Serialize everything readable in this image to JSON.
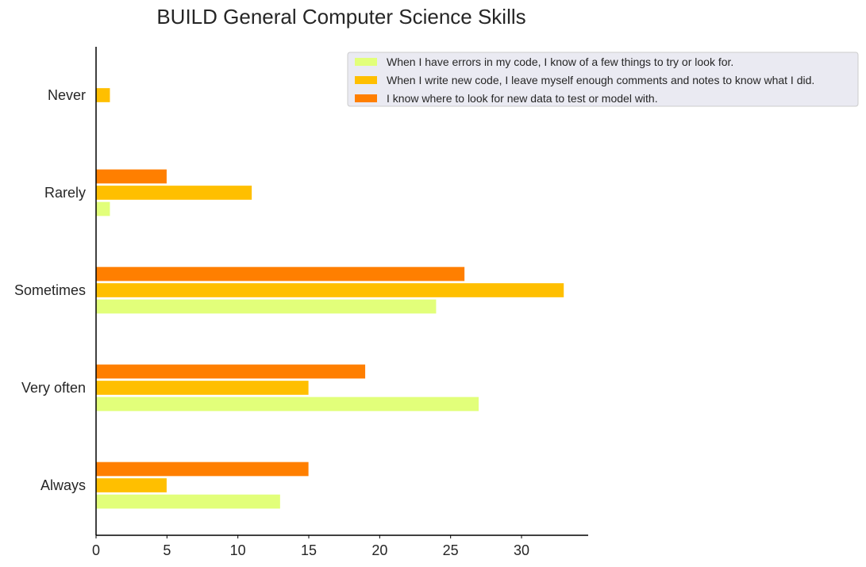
{
  "chart_data": {
    "type": "bar",
    "orientation": "horizontal",
    "title": "BUILD General Computer Science Skills",
    "xlabel": "",
    "ylabel": "",
    "categories": [
      "Always",
      "Very often",
      "Sometimes",
      "Rarely",
      "Never"
    ],
    "series": [
      {
        "name": "When I have errors in my code, I know of a few things to try or look for.",
        "color": "#e2ff7a",
        "values": [
          13,
          27,
          24,
          1,
          0
        ]
      },
      {
        "name": "When I write new code, I leave myself enough comments and notes to know what I did.",
        "color": "#ffbf00",
        "values": [
          5,
          15,
          33,
          11,
          1
        ]
      },
      {
        "name": "I know where to look for new data to test or model with.",
        "color": "#ff7f00",
        "values": [
          15,
          19,
          26,
          5,
          0
        ]
      }
    ],
    "xlim": [
      0,
      34.7
    ],
    "xticks": [
      0,
      5,
      10,
      15,
      20,
      25,
      30
    ],
    "grid": false,
    "legend_position": "top-right"
  }
}
